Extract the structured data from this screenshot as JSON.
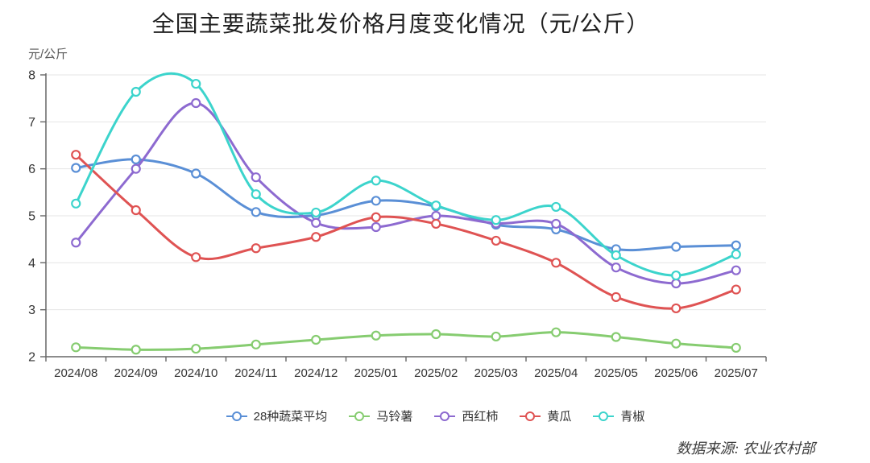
{
  "page": {
    "title": "全国主要蔬菜批发价格月度变化情况（元/公斤）",
    "unit_label": "元/公斤",
    "source_note": "数据来源: 农业农村部"
  },
  "colors": {
    "avg28": "#5a8fd6",
    "potato": "#86cc70",
    "tomato": "#8d6ad0",
    "cucumber": "#df5353",
    "green_pepper": "#3cd4cc",
    "grid": "#e4e4e4",
    "axis": "#666666",
    "tick_label": "#333333"
  },
  "chart_data": {
    "type": "line",
    "title": "全国主要蔬菜批发价格月度变化情况（元/公斤）",
    "xlabel": "",
    "ylabel": "元/公斤",
    "ylim": [
      2,
      8
    ],
    "y_ticks": [
      2,
      3,
      4,
      5,
      6,
      7,
      8
    ],
    "grid": true,
    "legend_position": "bottom",
    "smooth": true,
    "categories": [
      "2024/08",
      "2024/09",
      "2024/10",
      "2024/11",
      "2024/12",
      "2025/01",
      "2025/02",
      "2025/03",
      "2025/04",
      "2025/05",
      "2025/06",
      "2025/07"
    ],
    "series": [
      {
        "name": "28种蔬菜平均",
        "color": "#5a8fd6",
        "values": [
          6.02,
          6.2,
          5.9,
          5.08,
          5.01,
          5.32,
          5.2,
          4.81,
          4.71,
          4.29,
          4.34,
          4.37
        ]
      },
      {
        "name": "马铃薯",
        "color": "#86cc70",
        "values": [
          2.2,
          2.15,
          2.17,
          2.26,
          2.36,
          2.45,
          2.48,
          2.43,
          2.52,
          2.42,
          2.28,
          2.19
        ]
      },
      {
        "name": "西红柿",
        "color": "#8d6ad0",
        "values": [
          4.43,
          6.0,
          7.4,
          5.82,
          4.85,
          4.76,
          5.0,
          4.84,
          4.83,
          3.9,
          3.56,
          3.84
        ]
      },
      {
        "name": "黄瓜",
        "color": "#df5353",
        "values": [
          6.3,
          5.12,
          4.12,
          4.31,
          4.55,
          4.97,
          4.83,
          4.47,
          4.0,
          3.27,
          3.03,
          3.43
        ]
      },
      {
        "name": "青椒",
        "color": "#3cd4cc",
        "values": [
          5.26,
          7.64,
          7.81,
          5.46,
          5.07,
          5.75,
          5.22,
          4.91,
          5.19,
          4.16,
          3.73,
          4.18
        ]
      }
    ],
    "source": "数据来源: 农业农村部"
  }
}
